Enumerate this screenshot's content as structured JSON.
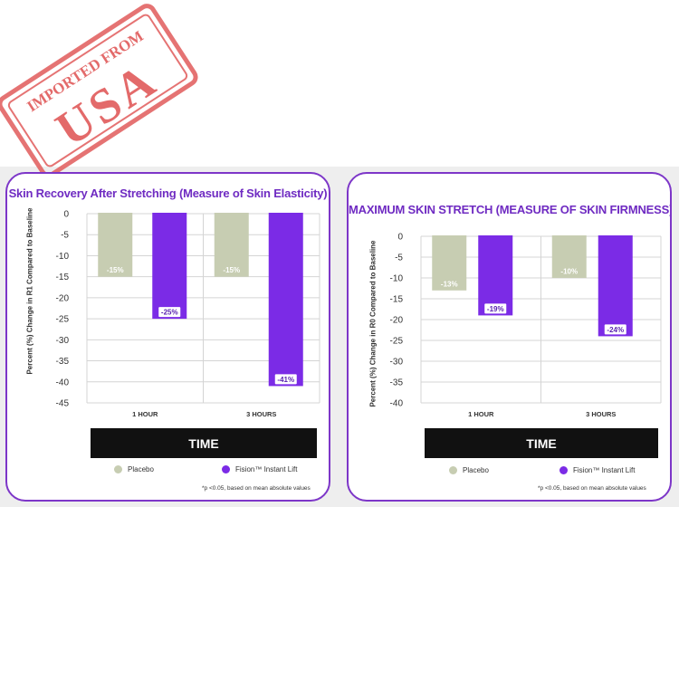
{
  "stamp": {
    "top_text": "IMPORTED FROM",
    "big_text": "USA",
    "color": "#e05a5a"
  },
  "colors": {
    "panel_border": "#7d36c8",
    "title": "#6f2bc2",
    "placebo": "#c7cdb2",
    "fision": "#7b2be6",
    "time_bar": "#111111",
    "background_strip": "#eeeeee"
  },
  "chart_data": [
    {
      "type": "bar",
      "title": "Skin Recovery After Stretching (Measure of Skin Elasticity)",
      "ylabel": "Percent (%) Change in R1 Compared to Baseline",
      "xlabel": "TIME",
      "categories": [
        "1 HOUR",
        "3 HOURS"
      ],
      "series": [
        {
          "name": "Placebo",
          "values": [
            -15,
            -15
          ],
          "labels": [
            "-15%",
            "-15%"
          ]
        },
        {
          "name": "Fision™ Instant Lift",
          "values": [
            -25,
            -41
          ],
          "labels": [
            "-25%",
            "-41%"
          ]
        }
      ],
      "ylim": [
        -45,
        0
      ],
      "yticks": [
        0,
        -5,
        -10,
        -15,
        -20,
        -25,
        -30,
        -35,
        -40,
        -45
      ],
      "grid": true,
      "legend": "bottom",
      "footnote": "*p <0.05, based on mean absolute values"
    },
    {
      "type": "bar",
      "title": "MAXIMUM SKIN STRETCH (MEASURE OF SKIN FIRMNESS)",
      "ylabel": "Percent (%) Change in R0 Compared to Baseline",
      "xlabel": "TIME",
      "categories": [
        "1 HOUR",
        "3 HOURS"
      ],
      "series": [
        {
          "name": "Placebo",
          "values": [
            -13,
            -10
          ],
          "labels": [
            "-13%",
            "-10%"
          ]
        },
        {
          "name": "Fision™ Instant Lift",
          "values": [
            -19,
            -24
          ],
          "labels": [
            "-19%",
            "-24%"
          ]
        }
      ],
      "ylim": [
        -40,
        0
      ],
      "yticks": [
        0,
        -5,
        -10,
        -15,
        -20,
        -25,
        -30,
        -35,
        -40
      ],
      "grid": true,
      "legend": "bottom",
      "footnote": "*p <0.05, based on mean absolute values"
    }
  ]
}
